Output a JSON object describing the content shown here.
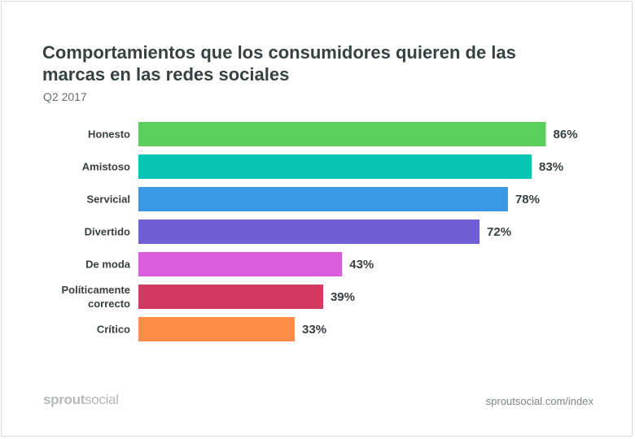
{
  "chart_data": {
    "type": "bar",
    "orientation": "horizontal",
    "title": "Comportamientos que los consumidores quieren de las marcas en las redes sociales",
    "subtitle": "Q2 2017",
    "categories": [
      [
        "Honesto"
      ],
      [
        "Amistoso"
      ],
      [
        "Servicial"
      ],
      [
        "Divertido"
      ],
      [
        "De moda"
      ],
      [
        "Políticamente",
        "correcto"
      ],
      [
        "Crítico"
      ]
    ],
    "values": [
      86,
      83,
      78,
      72,
      43,
      39,
      33
    ],
    "value_labels": [
      "86%",
      "83%",
      "78%",
      "72%",
      "43%",
      "39%",
      "33%"
    ],
    "colors": [
      "#5bcf5b",
      "#08c4b2",
      "#3a98e4",
      "#6e5ed3",
      "#da5ddb",
      "#d13961",
      "#fc8c47"
    ],
    "xlim": [
      0,
      100
    ],
    "unit": "%",
    "grid": false,
    "legend": "none"
  },
  "footer": {
    "logo_part1": "sprout",
    "logo_part2": "social",
    "source": "sproutsocial.com/index"
  }
}
